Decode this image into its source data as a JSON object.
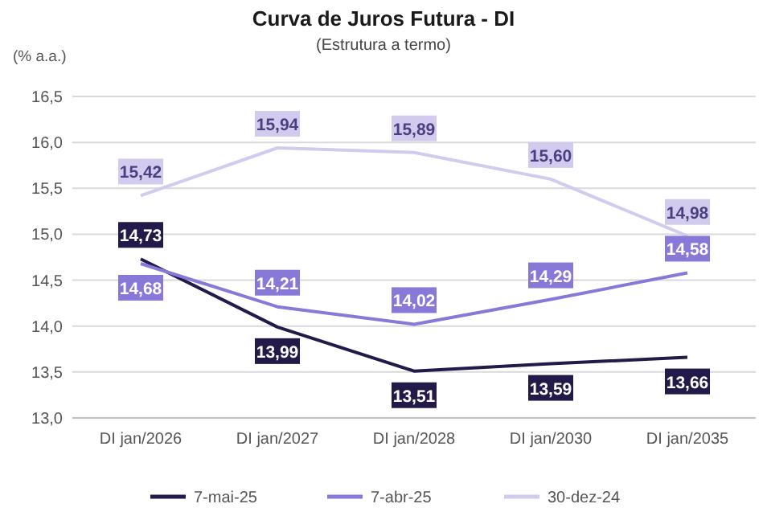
{
  "chart_data": {
    "type": "line",
    "title": "Curva de Juros Futura - DI",
    "subtitle": "(Estrutura a termo)",
    "ylabel": "(% a.a.)",
    "categories": [
      "DI jan/2026",
      "DI jan/2027",
      "DI jan/2028",
      "DI jan/2030",
      "DI jan/2035"
    ],
    "series": [
      {
        "name": "7-mai-25",
        "color": "#231a4a",
        "values": [
          14.73,
          13.99,
          13.51,
          13.59,
          13.66
        ],
        "value_labels": [
          "14,73",
          "13,99",
          "13,51",
          "13,59",
          "13,66"
        ]
      },
      {
        "name": "7-abr-25",
        "color": "#8878d8",
        "values": [
          14.68,
          14.21,
          14.02,
          14.29,
          14.58
        ],
        "value_labels": [
          "14,68",
          "14,21",
          "14,02",
          "14,29",
          "14,58"
        ]
      },
      {
        "name": "30-dez-24",
        "color": "#d3cbee",
        "values": [
          15.42,
          15.94,
          15.89,
          15.6,
          14.98
        ],
        "value_labels": [
          "15,42",
          "15,94",
          "15,89",
          "15,60",
          "14,98"
        ]
      }
    ],
    "ylim": [
      13,
      16.5
    ],
    "yticks": [
      {
        "value": 13,
        "label": "13,0"
      },
      {
        "value": 13.5,
        "label": "13,5"
      },
      {
        "value": 14,
        "label": "14,0"
      },
      {
        "value": 14.5,
        "label": "14,5"
      },
      {
        "value": 15,
        "label": "15,0"
      },
      {
        "value": 15.5,
        "label": "15,5"
      },
      {
        "value": 16,
        "label": "16,0"
      },
      {
        "value": 16.5,
        "label": "16,5"
      }
    ],
    "grid": "y",
    "legend": "bottom",
    "marker": "none",
    "line_style": "solid"
  }
}
